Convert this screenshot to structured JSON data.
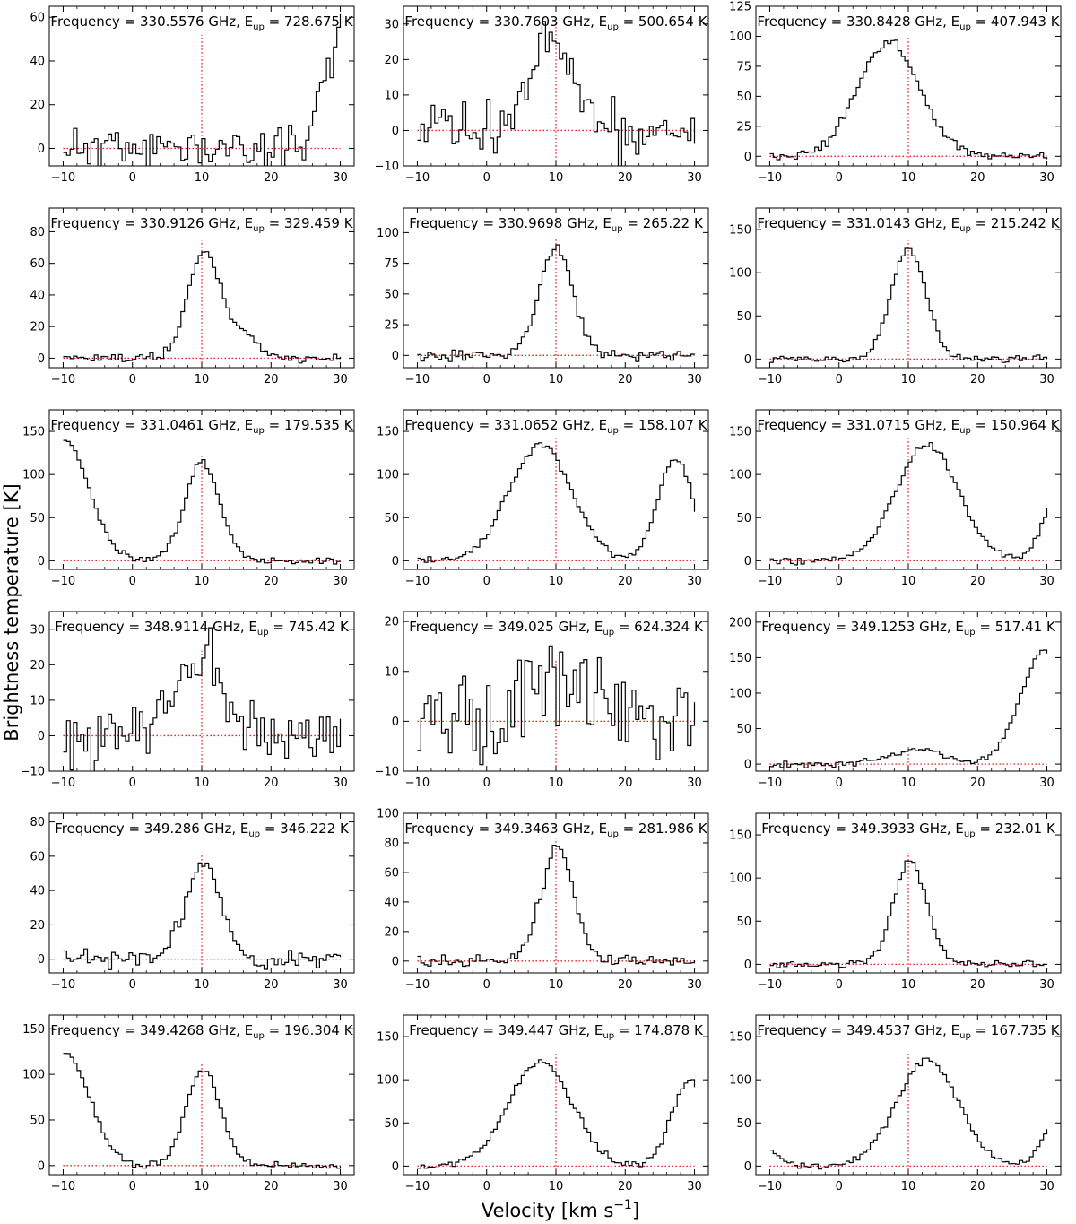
{
  "figure": {
    "ylabel": "Brightness temperature [K]",
    "xlabel_main": "Velocity [km s",
    "xlabel_sup": "−1",
    "xlabel_end": "]"
  },
  "chart_data": {
    "type": "line",
    "style": "step spectra grid (6 rows x 3 columns)",
    "x_range": [
      -10,
      30
    ],
    "x_ticks": [
      -10,
      0,
      10,
      20,
      30
    ],
    "reference_velocity": 10,
    "reference_line_color": "#e31a1c",
    "spectrum_color": "#000000",
    "panels": [
      {
        "freq": "330.5576",
        "eup": "728.675",
        "ylim": [
          -8,
          65
        ],
        "yticks": [
          0,
          20,
          40,
          60
        ],
        "components": [
          {
            "a": 55,
            "c": 30,
            "w": 2.5
          }
        ],
        "noise": 5,
        "seed": 11
      },
      {
        "freq": "330.7603",
        "eup": "500.654",
        "ylim": [
          -10,
          35
        ],
        "yticks": [
          -10,
          0,
          10,
          20,
          30
        ],
        "components": [
          {
            "a": 26,
            "c": 9,
            "w": 3.2
          }
        ],
        "noise": 4,
        "seed": 12
      },
      {
        "freq": "330.8428",
        "eup": "407.943",
        "ylim": [
          -8,
          125
        ],
        "yticks": [
          0,
          25,
          50,
          75,
          100,
          125
        ],
        "components": [
          {
            "a": 95,
            "c": 7,
            "w": 4.5
          }
        ],
        "noise": 2,
        "seed": 13
      },
      {
        "freq": "330.9126",
        "eup": "329.459",
        "ylim": [
          -6,
          95
        ],
        "yticks": [
          0,
          20,
          40,
          60,
          80
        ],
        "components": [
          {
            "a": 68,
            "c": 10,
            "w": 2.2
          },
          {
            "a": 15,
            "c": 15,
            "w": 2.5
          }
        ],
        "noise": 1.5,
        "seed": 14
      },
      {
        "freq": "330.9698",
        "eup": "265.22",
        "ylim": [
          -10,
          120
        ],
        "yticks": [
          0,
          25,
          50,
          75,
          100
        ],
        "components": [
          {
            "a": 88,
            "c": 9.8,
            "w": 2.4
          }
        ],
        "noise": 2,
        "seed": 15
      },
      {
        "freq": "331.0143",
        "eup": "215.242",
        "ylim": [
          -10,
          175
        ],
        "yticks": [
          0,
          50,
          100,
          150
        ],
        "components": [
          {
            "a": 128,
            "c": 9.8,
            "w": 2.5
          }
        ],
        "noise": 2,
        "seed": 16
      },
      {
        "freq": "331.0461",
        "eup": "179.535",
        "ylim": [
          -10,
          175
        ],
        "yticks": [
          0,
          50,
          100,
          150
        ],
        "components": [
          {
            "a": 140,
            "c": -10,
            "w": 3.5
          },
          {
            "a": 115,
            "c": 9.8,
            "w": 2.5
          }
        ],
        "noise": 2,
        "seed": 17
      },
      {
        "freq": "331.0652",
        "eup": "158.107",
        "ylim": [
          -10,
          175
        ],
        "yticks": [
          0,
          50,
          100,
          150
        ],
        "components": [
          {
            "a": 135,
            "c": 7.5,
            "w": 4.5
          },
          {
            "a": 118,
            "c": 27,
            "w": 2.5
          }
        ],
        "noise": 2,
        "seed": 18
      },
      {
        "freq": "331.0715",
        "eup": "150.964",
        "ylim": [
          -10,
          175
        ],
        "yticks": [
          0,
          50,
          100,
          150
        ],
        "components": [
          {
            "a": 135,
            "c": 12.5,
            "w": 4.5
          },
          {
            "a": 70,
            "c": 31,
            "w": 2
          }
        ],
        "noise": 2,
        "seed": 19
      },
      {
        "freq": "348.9114",
        "eup": "745.42",
        "ylim": [
          -10,
          35
        ],
        "yticks": [
          -10,
          0,
          10,
          20,
          30
        ],
        "components": [
          {
            "a": 20,
            "c": 10,
            "w": 4
          }
        ],
        "noise": 4,
        "seed": 20
      },
      {
        "freq": "349.025",
        "eup": "624.324",
        "ylim": [
          -10,
          22
        ],
        "yticks": [
          -10,
          0,
          10,
          20
        ],
        "components": [
          {
            "a": 9,
            "c": 10,
            "w": 5
          }
        ],
        "noise": 4,
        "seed": 21
      },
      {
        "freq": "349.1253",
        "eup": "517.41",
        "ylim": [
          -10,
          215
        ],
        "yticks": [
          0,
          50,
          100,
          150,
          200
        ],
        "components": [
          {
            "a": 20,
            "c": 11,
            "w": 4
          },
          {
            "a": 160,
            "c": 29.5,
            "w": 3.5
          }
        ],
        "noise": 2,
        "seed": 22
      },
      {
        "freq": "349.286",
        "eup": "346.222",
        "ylim": [
          -8,
          85
        ],
        "yticks": [
          0,
          20,
          40,
          60,
          80
        ],
        "components": [
          {
            "a": 55,
            "c": 10,
            "w": 2.6
          }
        ],
        "noise": 2.5,
        "seed": 23
      },
      {
        "freq": "349.3463",
        "eup": "281.986",
        "ylim": [
          -8,
          100
        ],
        "yticks": [
          0,
          20,
          40,
          60,
          80,
          100
        ],
        "components": [
          {
            "a": 76,
            "c": 10,
            "w": 2.4
          }
        ],
        "noise": 2,
        "seed": 24
      },
      {
        "freq": "349.3933",
        "eup": "232.01",
        "ylim": [
          -10,
          175
        ],
        "yticks": [
          0,
          50,
          100,
          150
        ],
        "components": [
          {
            "a": 120,
            "c": 10,
            "w": 2.4
          }
        ],
        "noise": 2,
        "seed": 25
      },
      {
        "freq": "349.4268",
        "eup": "196.304",
        "ylim": [
          -10,
          165
        ],
        "yticks": [
          0,
          50,
          100,
          150
        ],
        "components": [
          {
            "a": 125,
            "c": -10,
            "w": 3.5
          },
          {
            "a": 105,
            "c": 10,
            "w": 2.5
          }
        ],
        "noise": 2,
        "seed": 26
      },
      {
        "freq": "349.447",
        "eup": "174.878",
        "ylim": [
          -10,
          175
        ],
        "yticks": [
          0,
          50,
          100,
          150
        ],
        "components": [
          {
            "a": 122,
            "c": 7.5,
            "w": 4.5
          },
          {
            "a": 100,
            "c": 29,
            "w": 2.5
          }
        ],
        "noise": 2,
        "seed": 27
      },
      {
        "freq": "349.4537",
        "eup": "167.735",
        "ylim": [
          -10,
          175
        ],
        "yticks": [
          0,
          50,
          100,
          150
        ],
        "components": [
          {
            "a": 122,
            "c": 12.5,
            "w": 4.5
          },
          {
            "a": 50,
            "c": 31,
            "w": 2
          },
          {
            "a": 20,
            "c": -11,
            "w": 2
          }
        ],
        "noise": 2,
        "seed": 28
      }
    ]
  }
}
